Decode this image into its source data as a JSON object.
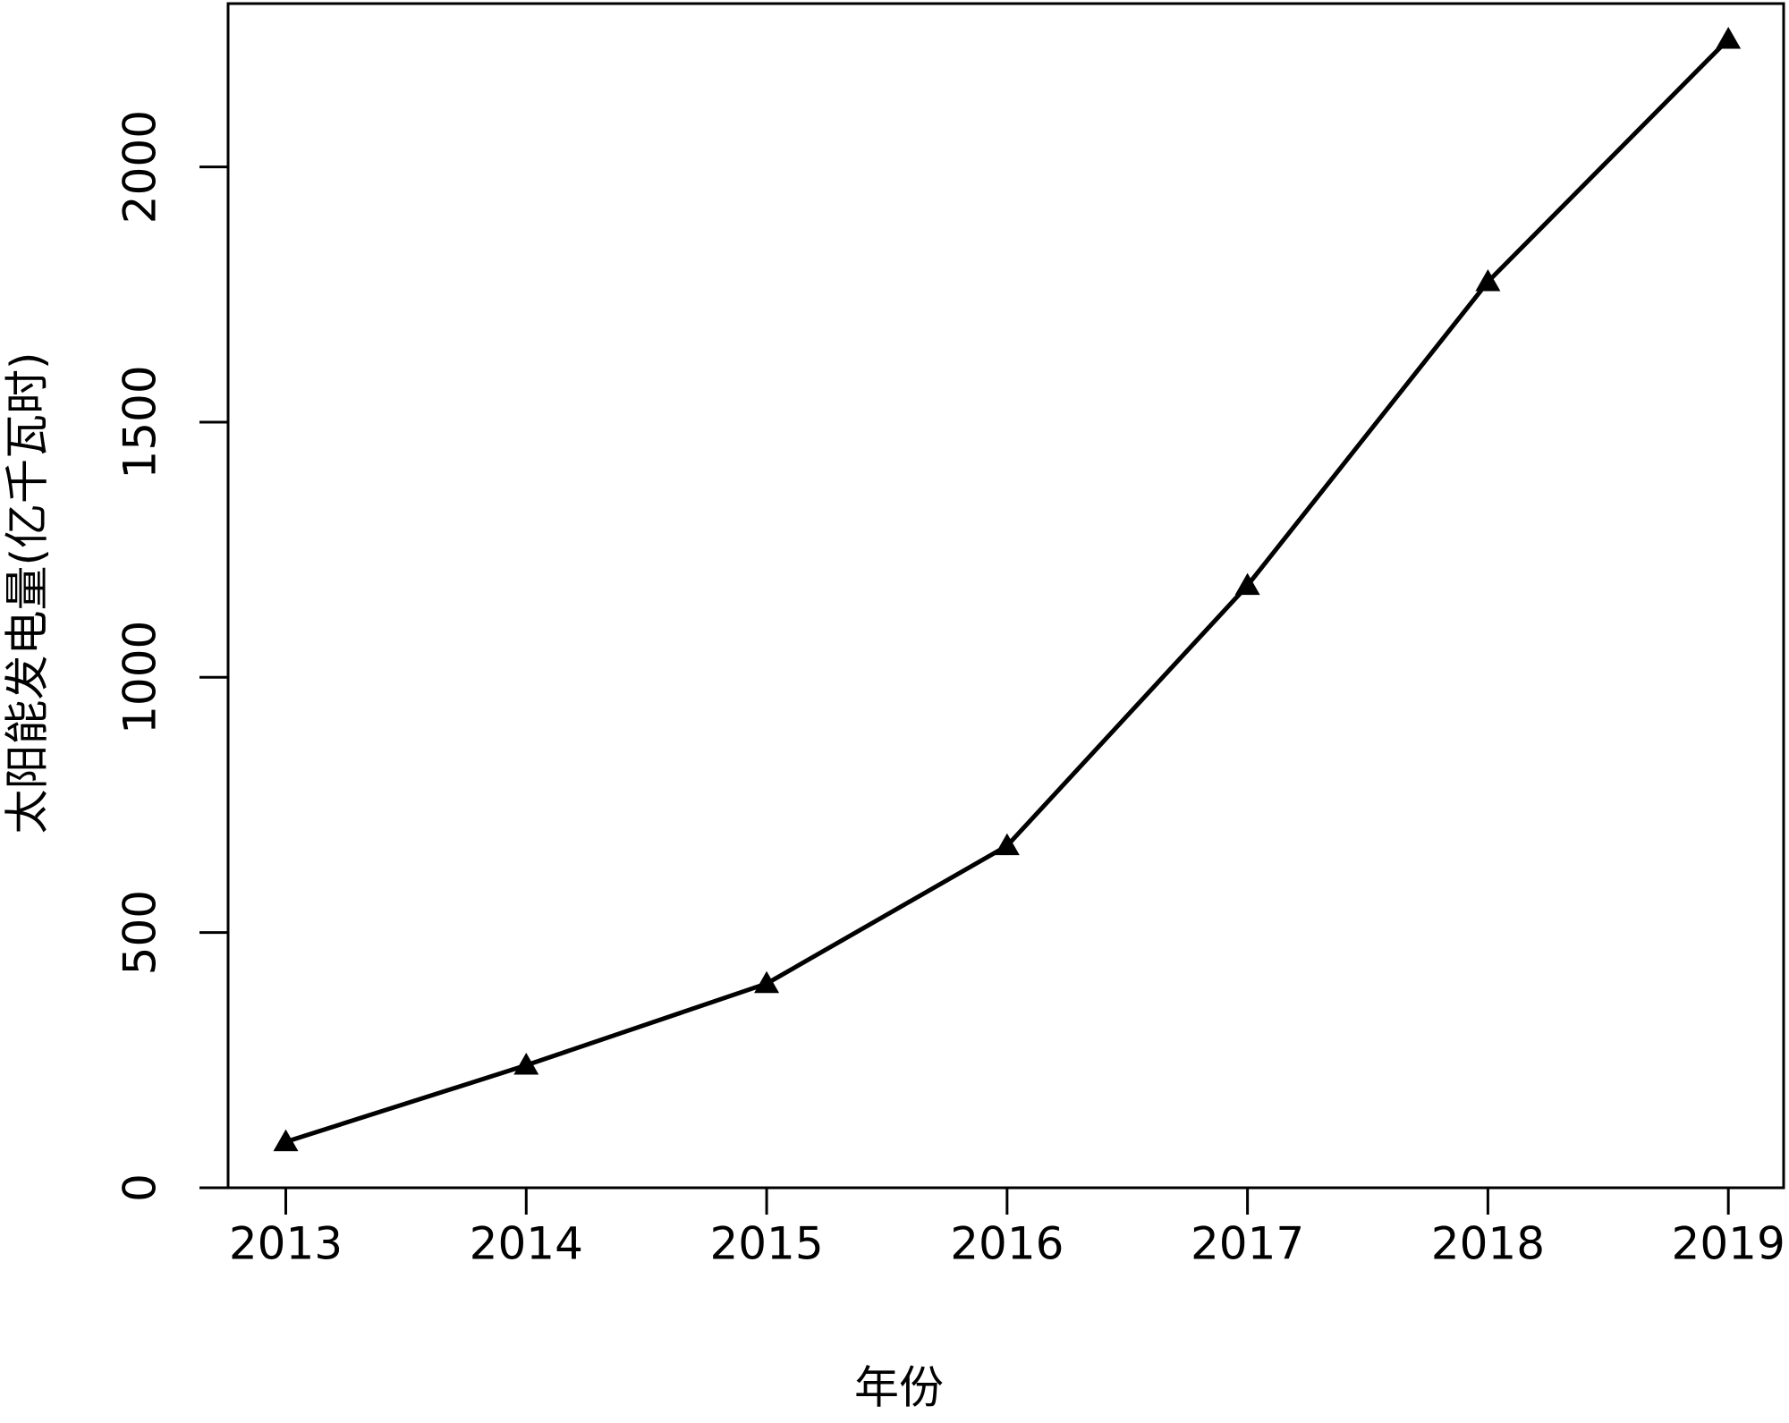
{
  "chart_data": {
    "type": "line",
    "x_label": "年份",
    "y_label": "太阳能发电量(亿千瓦时)",
    "x": [
      2013,
      2014,
      2015,
      2016,
      2017,
      2018,
      2019
    ],
    "series": [
      {
        "name": "太阳能发电量",
        "color": "#000000",
        "values": [
          90,
          240,
          400,
          670,
          1180,
          1775,
          2250
        ]
      }
    ],
    "xlim": [
      2012.76,
      2019.23
    ],
    "ylim": [
      0,
      2320
    ],
    "xticks": [
      2013,
      2014,
      2015,
      2016,
      2017,
      2018,
      2019
    ],
    "yticks": [
      0,
      500,
      1000,
      1500,
      2000
    ],
    "grid": false
  }
}
